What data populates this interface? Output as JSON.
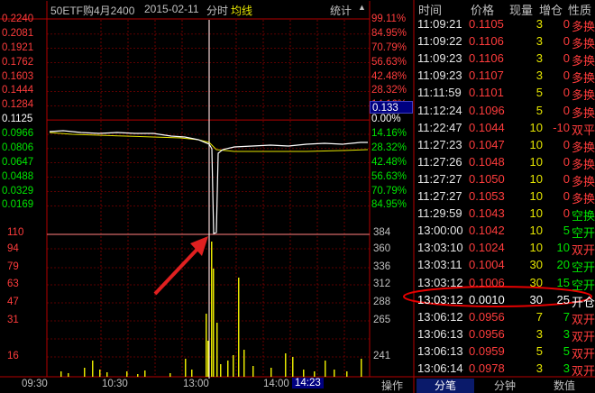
{
  "header": {
    "contract": "50ETF购4月2400",
    "date": "2015-02-11",
    "mode": "分时",
    "avg_label": "均线",
    "stats_label": "统计"
  },
  "price_axis": {
    "labels": [
      "0.2240",
      "0.2081",
      "0.1921",
      "0.1762",
      "0.1603",
      "0.1444",
      "0.1284",
      "0.1125",
      "0.0966",
      "0.0806",
      "0.0647",
      "0.0488",
      "0.0329",
      "0.0169"
    ],
    "pcts": [
      "99.11%",
      "84.95%",
      "70.79%",
      "56.63%",
      "42.48%",
      "28.32%",
      "14.16%",
      "0.00%",
      "14.16%",
      "28.32%",
      "42.48%",
      "56.63%",
      "70.79%",
      "84.95%"
    ],
    "current_price": "0.133"
  },
  "volume_axis": {
    "left": [
      "110",
      "94",
      "79",
      "63",
      "47",
      "31",
      "16"
    ],
    "right": [
      "384",
      "360",
      "336",
      "312",
      "288",
      "265",
      "241"
    ]
  },
  "time_axis": {
    "ticks": [
      "09:30",
      "10:30",
      "13:00",
      "14:00"
    ],
    "cursor_time": "14:23"
  },
  "trades_header": {
    "time": "时间",
    "price": "价格",
    "vol": "现量",
    "chg": "增仓",
    "nature": "性质"
  },
  "trades": [
    {
      "time": "11:09:21",
      "price": "0.1105",
      "vol": "3",
      "chg": "0",
      "nature": "多换"
    },
    {
      "time": "11:09:22",
      "price": "0.1106",
      "vol": "3",
      "chg": "0",
      "nature": "多换"
    },
    {
      "time": "11:09:23",
      "price": "0.1106",
      "vol": "3",
      "chg": "0",
      "nature": "多换"
    },
    {
      "time": "11:09:23",
      "price": "0.1107",
      "vol": "3",
      "chg": "0",
      "nature": "多换"
    },
    {
      "time": "11:11:59",
      "price": "0.1101",
      "vol": "5",
      "chg": "0",
      "nature": "多换"
    },
    {
      "time": "11:12:24",
      "price": "0.1096",
      "vol": "5",
      "chg": "0",
      "nature": "多换"
    },
    {
      "time": "11:22:47",
      "price": "0.1044",
      "vol": "10",
      "chg": "-10",
      "nature": "双平"
    },
    {
      "time": "11:27:23",
      "price": "0.1047",
      "vol": "10",
      "chg": "0",
      "nature": "多换"
    },
    {
      "time": "11:27:26",
      "price": "0.1048",
      "vol": "10",
      "chg": "0",
      "nature": "多换"
    },
    {
      "time": "11:27:27",
      "price": "0.1050",
      "vol": "10",
      "chg": "0",
      "nature": "多换"
    },
    {
      "time": "11:27:27",
      "price": "0.1053",
      "vol": "10",
      "chg": "0",
      "nature": "多换"
    },
    {
      "time": "11:29:59",
      "price": "0.1043",
      "vol": "10",
      "chg": "0",
      "nature": "空换"
    },
    {
      "time": "13:00:00",
      "price": "0.1042",
      "vol": "10",
      "chg": "5",
      "nature": "空开"
    },
    {
      "time": "13:03:10",
      "price": "0.1024",
      "vol": "10",
      "chg": "10",
      "nature": "双开"
    },
    {
      "time": "13:03:11",
      "price": "0.1004",
      "vol": "30",
      "chg": "20",
      "nature": "空开"
    },
    {
      "time": "13:03:12",
      "price": "0.1006",
      "vol": "30",
      "chg": "15",
      "nature": "空开"
    },
    {
      "time": "13:03:12",
      "price": "0.0010",
      "vol": "30",
      "chg": "25",
      "nature": "开仓"
    },
    {
      "time": "13:06:12",
      "price": "0.0956",
      "vol": "7",
      "chg": "7",
      "nature": "双开"
    },
    {
      "time": "13:06:13",
      "price": "0.0956",
      "vol": "3",
      "chg": "3",
      "nature": "双开"
    },
    {
      "time": "13:06:13",
      "price": "0.0959",
      "vol": "5",
      "chg": "5",
      "nature": "双开"
    },
    {
      "time": "13:06:14",
      "price": "0.0978",
      "vol": "3",
      "chg": "3",
      "nature": "双开"
    }
  ],
  "tabs": [
    "操作",
    "分笔",
    "分钟",
    "数值"
  ],
  "colors": {
    "up": "#ff3c3c",
    "down": "#00e600",
    "grid": "#b40000",
    "price_line": "#ffffff",
    "avg_line": "#e6e600",
    "volume": "#e6e600",
    "highlight_circle": "#e60000",
    "arrow": "#e02020",
    "cursor_box": "#000080"
  }
}
